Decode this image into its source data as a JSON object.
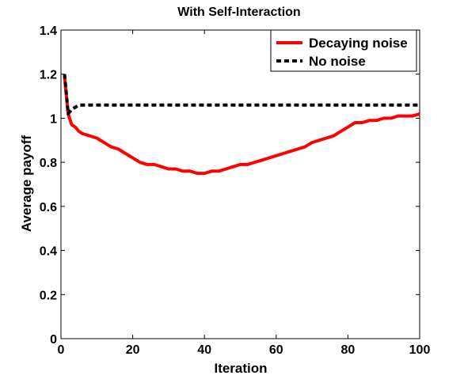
{
  "chart_data": {
    "type": "line",
    "title": "With Self-Interaction",
    "xlabel": "Iteration",
    "ylabel": "Average payoff",
    "xlim": [
      0,
      100
    ],
    "ylim": [
      0,
      1.4
    ],
    "xticks": [
      0,
      20,
      40,
      60,
      80,
      100
    ],
    "xtick_labels": [
      "0",
      "20",
      "40",
      "60",
      "80",
      "100"
    ],
    "yticks": [
      0,
      0.2,
      0.4,
      0.6,
      0.8,
      1,
      1.2,
      1.4
    ],
    "ytick_labels": [
      "0",
      "0.2",
      "0.4",
      "0.6",
      "0.8",
      "1",
      "1.2",
      "1.4"
    ],
    "grid": false,
    "legend_position": "top-right",
    "series": [
      {
        "name": "Decaying noise",
        "color": "#ff0000",
        "style": "solid",
        "x": [
          1,
          2,
          3,
          4,
          5,
          6,
          8,
          10,
          12,
          14,
          16,
          18,
          20,
          22,
          24,
          26,
          28,
          30,
          32,
          34,
          36,
          38,
          40,
          42,
          44,
          46,
          48,
          50,
          52,
          54,
          56,
          58,
          60,
          62,
          64,
          66,
          68,
          70,
          72,
          74,
          76,
          78,
          80,
          82,
          84,
          86,
          88,
          90,
          92,
          94,
          96,
          98,
          100
        ],
        "y": [
          1.19,
          1.02,
          0.97,
          0.96,
          0.94,
          0.93,
          0.92,
          0.91,
          0.89,
          0.87,
          0.86,
          0.84,
          0.82,
          0.8,
          0.79,
          0.79,
          0.78,
          0.77,
          0.77,
          0.76,
          0.76,
          0.75,
          0.75,
          0.76,
          0.76,
          0.77,
          0.78,
          0.79,
          0.79,
          0.8,
          0.81,
          0.82,
          0.83,
          0.84,
          0.85,
          0.86,
          0.87,
          0.89,
          0.9,
          0.91,
          0.92,
          0.94,
          0.96,
          0.98,
          0.98,
          0.99,
          0.99,
          1.0,
          1.0,
          1.01,
          1.01,
          1.01,
          1.02
        ]
      },
      {
        "name": "No noise",
        "color": "#000000",
        "style": "dashed",
        "x": [
          1,
          2,
          3,
          4,
          5,
          6,
          10,
          20,
          40,
          60,
          80,
          100
        ],
        "y": [
          1.2,
          1.02,
          1.04,
          1.05,
          1.06,
          1.06,
          1.06,
          1.06,
          1.06,
          1.06,
          1.06,
          1.06
        ]
      }
    ]
  }
}
